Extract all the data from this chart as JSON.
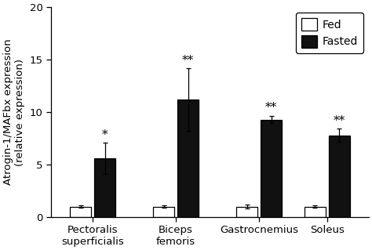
{
  "categories": [
    "Pectoralis\nsuperficialis",
    "Biceps\nfemoris",
    "Gastrocnemius",
    "Soleus"
  ],
  "fed_values": [
    1.0,
    1.0,
    1.0,
    1.0
  ],
  "fasted_values": [
    5.6,
    11.2,
    9.3,
    7.8
  ],
  "fed_errors": [
    0.12,
    0.12,
    0.18,
    0.12
  ],
  "fasted_errors": [
    1.5,
    3.0,
    0.35,
    0.65
  ],
  "fed_color": "#ffffff",
  "fasted_color": "#111111",
  "fed_edgecolor": "#000000",
  "fasted_edgecolor": "#000000",
  "ylabel_line1": "Atrogin-1/MAFbx expression",
  "ylabel_line2": "(relative expression)",
  "ylim": [
    0,
    20
  ],
  "yticks": [
    0,
    5,
    10,
    15,
    20
  ],
  "bar_width": 0.28,
  "bar_gap": 0.04,
  "significance_fasted": [
    "*",
    "**",
    "**",
    "**"
  ],
  "legend_labels": [
    "Fed",
    "Fasted"
  ],
  "background_color": "#ffffff",
  "tick_fontsize": 9.5,
  "label_fontsize": 9.5,
  "sig_fontsize": 11,
  "legend_fontsize": 10
}
